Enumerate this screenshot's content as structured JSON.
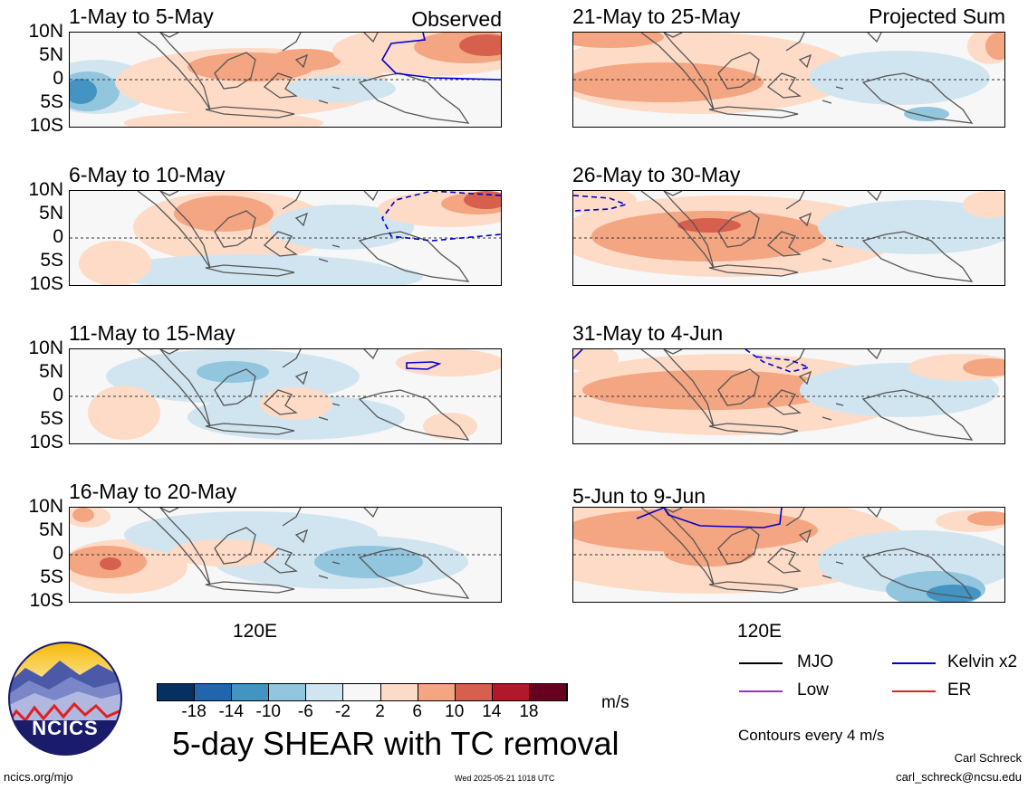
{
  "panels": [
    {
      "title": "1-May to 5-May",
      "corner": "Observed"
    },
    {
      "title": "6-May to 10-May",
      "corner": ""
    },
    {
      "title": "11-May to 15-May",
      "corner": ""
    },
    {
      "title": "16-May to 20-May",
      "corner": ""
    },
    {
      "title": "21-May to 25-May",
      "corner": "Projected Sum"
    },
    {
      "title": "26-May to 30-May",
      "corner": ""
    },
    {
      "title": "31-May to 4-Jun",
      "corner": ""
    },
    {
      "title": "5-Jun to 9-Jun",
      "corner": ""
    }
  ],
  "lat_labels": [
    "10N",
    "5N",
    "0",
    "5S",
    "10S"
  ],
  "lon_label": "120E",
  "colorbar": {
    "colors": [
      "#053061",
      "#2166ac",
      "#4393c3",
      "#92c5de",
      "#d1e5f0",
      "#f7f7f7",
      "#fddbc7",
      "#f4a582",
      "#d6604d",
      "#b2182b",
      "#67001f"
    ],
    "ticks": [
      "-18",
      "-14",
      "-10",
      "-6",
      "-2",
      "2",
      "6",
      "10",
      "14",
      "18"
    ],
    "unit": "m/s"
  },
  "main_title": "5-day SHEAR with TC removal",
  "legend": {
    "items": [
      {
        "label": "MJO",
        "color": "#000000"
      },
      {
        "label": "Kelvin x2",
        "color": "#0000cc"
      },
      {
        "label": "Low",
        "color": "#9933cc"
      },
      {
        "label": "ER",
        "color": "#dd2222"
      }
    ],
    "note": "Contours every 4 m/s"
  },
  "footer": {
    "site": "ncics.org/mjo",
    "timestamp": "Wed 2025-05-21 1018 UTC",
    "author": "Carl Schreck",
    "email": "carl_schreck@ncsu.edu"
  },
  "logo": {
    "text": "NCICS"
  }
}
